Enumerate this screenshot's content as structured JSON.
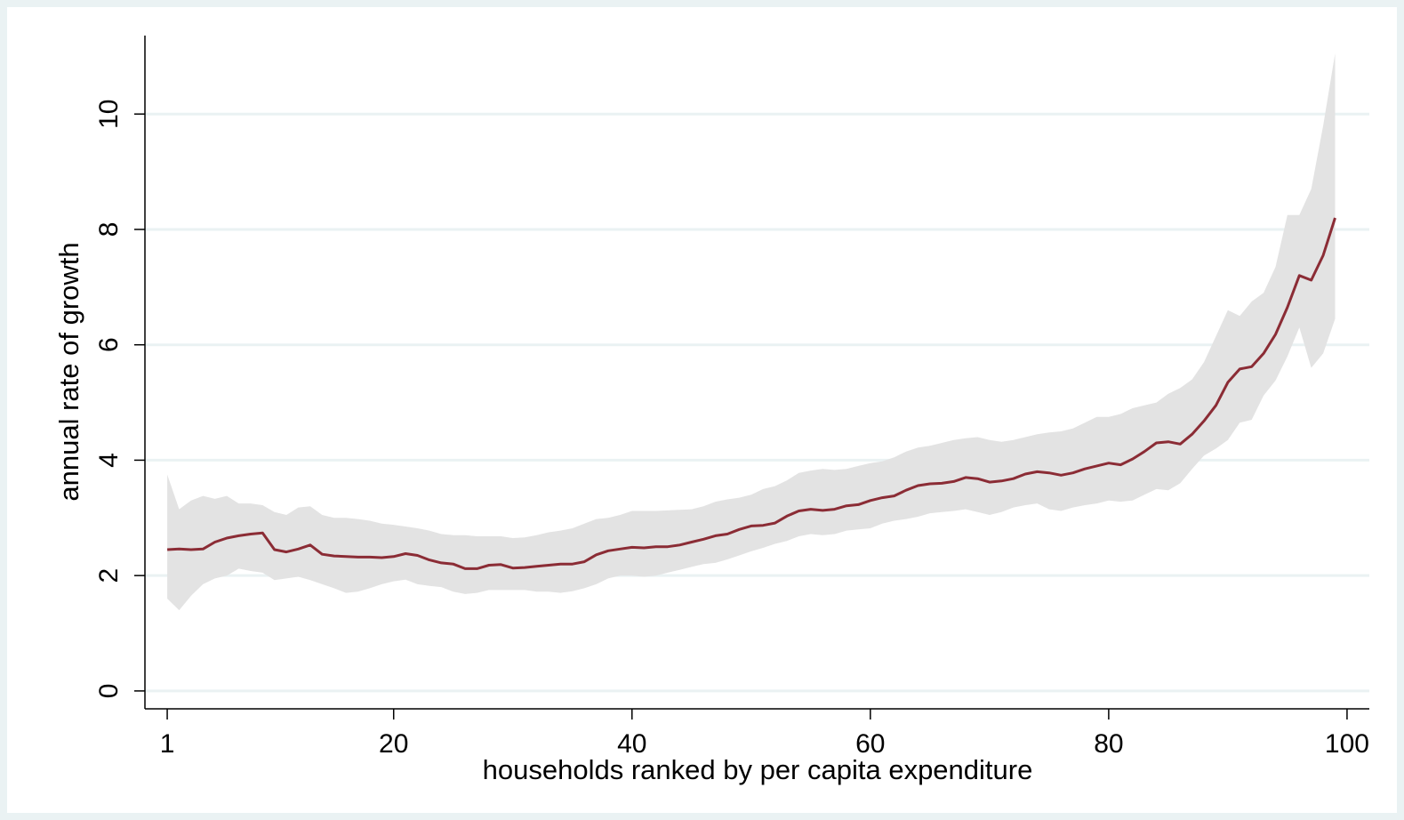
{
  "chart_data": {
    "type": "line",
    "x_label": "households ranked by per capita expenditure",
    "y_label": "annual rate of growth",
    "x": [
      1,
      2,
      3,
      4,
      5,
      6,
      7,
      8,
      9,
      10,
      11,
      12,
      13,
      14,
      15,
      16,
      17,
      18,
      19,
      20,
      21,
      22,
      23,
      24,
      25,
      26,
      27,
      28,
      29,
      30,
      31,
      32,
      33,
      34,
      35,
      36,
      37,
      38,
      39,
      40,
      41,
      42,
      43,
      44,
      45,
      46,
      47,
      48,
      49,
      50,
      51,
      52,
      53,
      54,
      55,
      56,
      57,
      58,
      59,
      60,
      61,
      62,
      63,
      64,
      65,
      66,
      67,
      68,
      69,
      70,
      71,
      72,
      73,
      74,
      75,
      76,
      77,
      78,
      79,
      80,
      81,
      82,
      83,
      84,
      85,
      86,
      87,
      88,
      89,
      90,
      91,
      92,
      93,
      94,
      95,
      96,
      97,
      98,
      99
    ],
    "series": [
      {
        "color": "#8b2c35",
        "values": [
          2.45,
          2.46,
          2.45,
          2.46,
          2.58,
          2.65,
          2.69,
          2.72,
          2.74,
          2.45,
          2.41,
          2.46,
          2.53,
          2.37,
          2.34,
          2.33,
          2.32,
          2.32,
          2.31,
          2.33,
          2.38,
          2.35,
          2.27,
          2.22,
          2.2,
          2.12,
          2.12,
          2.18,
          2.19,
          2.13,
          2.14,
          2.16,
          2.18,
          2.2,
          2.2,
          2.24,
          2.36,
          2.43,
          2.46,
          2.49,
          2.48,
          2.5,
          2.5,
          2.53,
          2.58,
          2.63,
          2.69,
          2.72,
          2.8,
          2.86,
          2.87,
          2.91,
          3.03,
          3.12,
          3.15,
          3.13,
          3.15,
          3.21,
          3.23,
          3.3,
          3.35,
          3.38,
          3.48,
          3.56,
          3.59,
          3.6,
          3.63,
          3.7,
          3.68,
          3.62,
          3.64,
          3.68,
          3.76,
          3.8,
          3.78,
          3.74,
          3.78,
          3.85,
          3.9,
          3.95,
          3.92,
          4.02,
          4.15,
          4.3,
          4.32,
          4.28,
          4.45,
          4.68,
          4.95,
          5.35,
          5.58,
          5.62,
          5.85,
          6.18,
          6.65,
          7.2,
          7.12,
          7.55,
          8.2
        ]
      }
    ],
    "band": {
      "color": "#e3e3e3",
      "upper": [
        3.75,
        3.15,
        3.3,
        3.38,
        3.33,
        3.38,
        3.25,
        3.25,
        3.22,
        3.1,
        3.05,
        3.18,
        3.2,
        3.05,
        3.0,
        3.0,
        2.98,
        2.95,
        2.9,
        2.88,
        2.85,
        2.82,
        2.78,
        2.72,
        2.7,
        2.7,
        2.68,
        2.68,
        2.68,
        2.65,
        2.66,
        2.7,
        2.75,
        2.78,
        2.82,
        2.9,
        2.98,
        3.0,
        3.05,
        3.12,
        3.12,
        3.12,
        3.13,
        3.14,
        3.15,
        3.2,
        3.28,
        3.32,
        3.35,
        3.4,
        3.5,
        3.55,
        3.65,
        3.78,
        3.82,
        3.85,
        3.83,
        3.85,
        3.9,
        3.95,
        3.98,
        4.05,
        4.15,
        4.22,
        4.25,
        4.3,
        4.35,
        4.38,
        4.4,
        4.35,
        4.32,
        4.35,
        4.4,
        4.45,
        4.48,
        4.5,
        4.55,
        4.65,
        4.75,
        4.75,
        4.8,
        4.9,
        4.95,
        5.0,
        5.15,
        5.25,
        5.4,
        5.7,
        6.15,
        6.6,
        6.5,
        6.75,
        6.9,
        7.35,
        8.25,
        8.25,
        8.7,
        9.8,
        11.05
      ],
      "lower": [
        1.6,
        1.4,
        1.65,
        1.85,
        1.95,
        2.0,
        2.12,
        2.08,
        2.05,
        1.92,
        1.95,
        1.98,
        1.92,
        1.85,
        1.78,
        1.7,
        1.72,
        1.78,
        1.85,
        1.9,
        1.93,
        1.85,
        1.82,
        1.8,
        1.72,
        1.68,
        1.7,
        1.75,
        1.75,
        1.75,
        1.75,
        1.72,
        1.72,
        1.7,
        1.73,
        1.78,
        1.85,
        1.95,
        2.0,
        2.0,
        1.98,
        2.0,
        2.05,
        2.1,
        2.15,
        2.2,
        2.22,
        2.28,
        2.35,
        2.42,
        2.48,
        2.55,
        2.6,
        2.68,
        2.72,
        2.7,
        2.72,
        2.78,
        2.8,
        2.82,
        2.9,
        2.95,
        2.98,
        3.02,
        3.08,
        3.1,
        3.12,
        3.15,
        3.1,
        3.05,
        3.1,
        3.18,
        3.22,
        3.25,
        3.15,
        3.12,
        3.18,
        3.22,
        3.25,
        3.3,
        3.28,
        3.3,
        3.4,
        3.5,
        3.48,
        3.6,
        3.85,
        4.08,
        4.2,
        4.35,
        4.65,
        4.7,
        5.12,
        5.38,
        5.8,
        6.3,
        5.6,
        5.85,
        6.45
      ]
    },
    "xlim": [
      -0.87,
      101.87
    ],
    "xticks": [
      1,
      20,
      40,
      60,
      80,
      100
    ],
    "ylim": [
      -0.31,
      11.36
    ],
    "yticks": [
      0,
      2,
      4,
      6,
      8,
      10
    ],
    "grid": true,
    "grid_color": "#eaf2f3"
  }
}
